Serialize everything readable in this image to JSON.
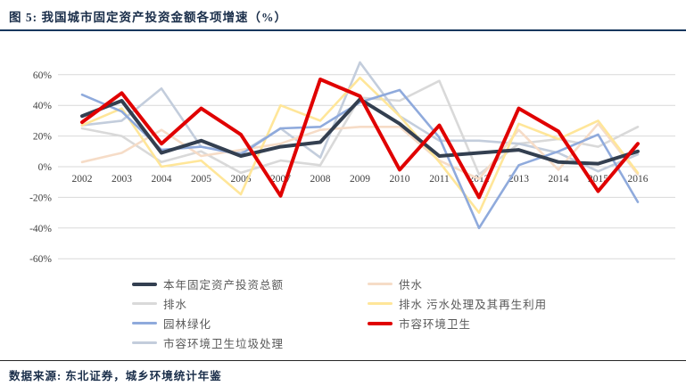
{
  "page": {
    "title": "图 5: 我国城市固定资产投资金额各项增速（%）",
    "source": "数据来源: 东北证券，城乡环境统计年鉴"
  },
  "chart_data": {
    "type": "line",
    "title": "我国城市固定资产投资金额各项增速（%）",
    "x": [
      "2002",
      "2003",
      "2004",
      "2005",
      "2006",
      "2007",
      "2008",
      "2009",
      "2010",
      "2011",
      "2012",
      "2013",
      "2014",
      "2015",
      "2016"
    ],
    "y_ticks": [
      "60%",
      "40%",
      "20%",
      "0%",
      "-20%",
      "-40%",
      "-60%"
    ],
    "y_tick_values": [
      60,
      40,
      20,
      0,
      -20,
      -40,
      -60
    ],
    "ylim": [
      -60,
      70
    ],
    "grid": true,
    "legend_position": "bottom",
    "grid_color": "#D9D9D9",
    "series": [
      {
        "name": "本年固定资产投资总额",
        "color": "#333F50",
        "thick": true,
        "values": [
          33,
          43,
          9,
          17,
          7,
          13,
          16,
          44,
          28,
          7,
          9,
          11,
          3,
          2,
          10
        ]
      },
      {
        "name": "供水",
        "color": "#F6DCC7",
        "thick": false,
        "values": [
          3,
          9,
          24,
          7,
          11,
          15,
          24,
          26,
          26,
          4,
          -8,
          24,
          -2,
          28,
          -5
        ]
      },
      {
        "name": "排水",
        "color": "#D9D9D9",
        "thick": false,
        "values": [
          25,
          20,
          3,
          10,
          -4,
          4,
          1,
          45,
          43,
          56,
          -5,
          15,
          18,
          13,
          26
        ]
      },
      {
        "name": "排水 污水处理及其再生利用",
        "color": "#FFE699",
        "thick": false,
        "values": [
          27,
          38,
          0,
          4,
          -18,
          40,
          30,
          58,
          33,
          3,
          -30,
          28,
          18,
          30,
          -4
        ]
      },
      {
        "name": "园林绿化",
        "color": "#8FAADC",
        "thick": false,
        "values": [
          47,
          36,
          11,
          13,
          8,
          25,
          26,
          42,
          50,
          19,
          -40,
          1,
          10,
          21,
          -23
        ]
      },
      {
        "name": "市容环境卫生",
        "color": "#E00000",
        "thick": true,
        "values": [
          29,
          48,
          15,
          38,
          21,
          -19,
          57,
          46,
          -2,
          27,
          -20,
          38,
          23,
          -16,
          15
        ]
      },
      {
        "name": "市容环境卫生垃圾处理",
        "color": "#C3CDDC",
        "thick": false,
        "values": [
          27,
          30,
          51,
          13,
          9,
          25,
          6,
          68,
          33,
          17,
          17,
          15,
          9,
          -3,
          8
        ]
      }
    ],
    "legend_columns": {
      "left": [
        0,
        2,
        4,
        6
      ],
      "right": [
        1,
        3,
        5
      ]
    }
  }
}
